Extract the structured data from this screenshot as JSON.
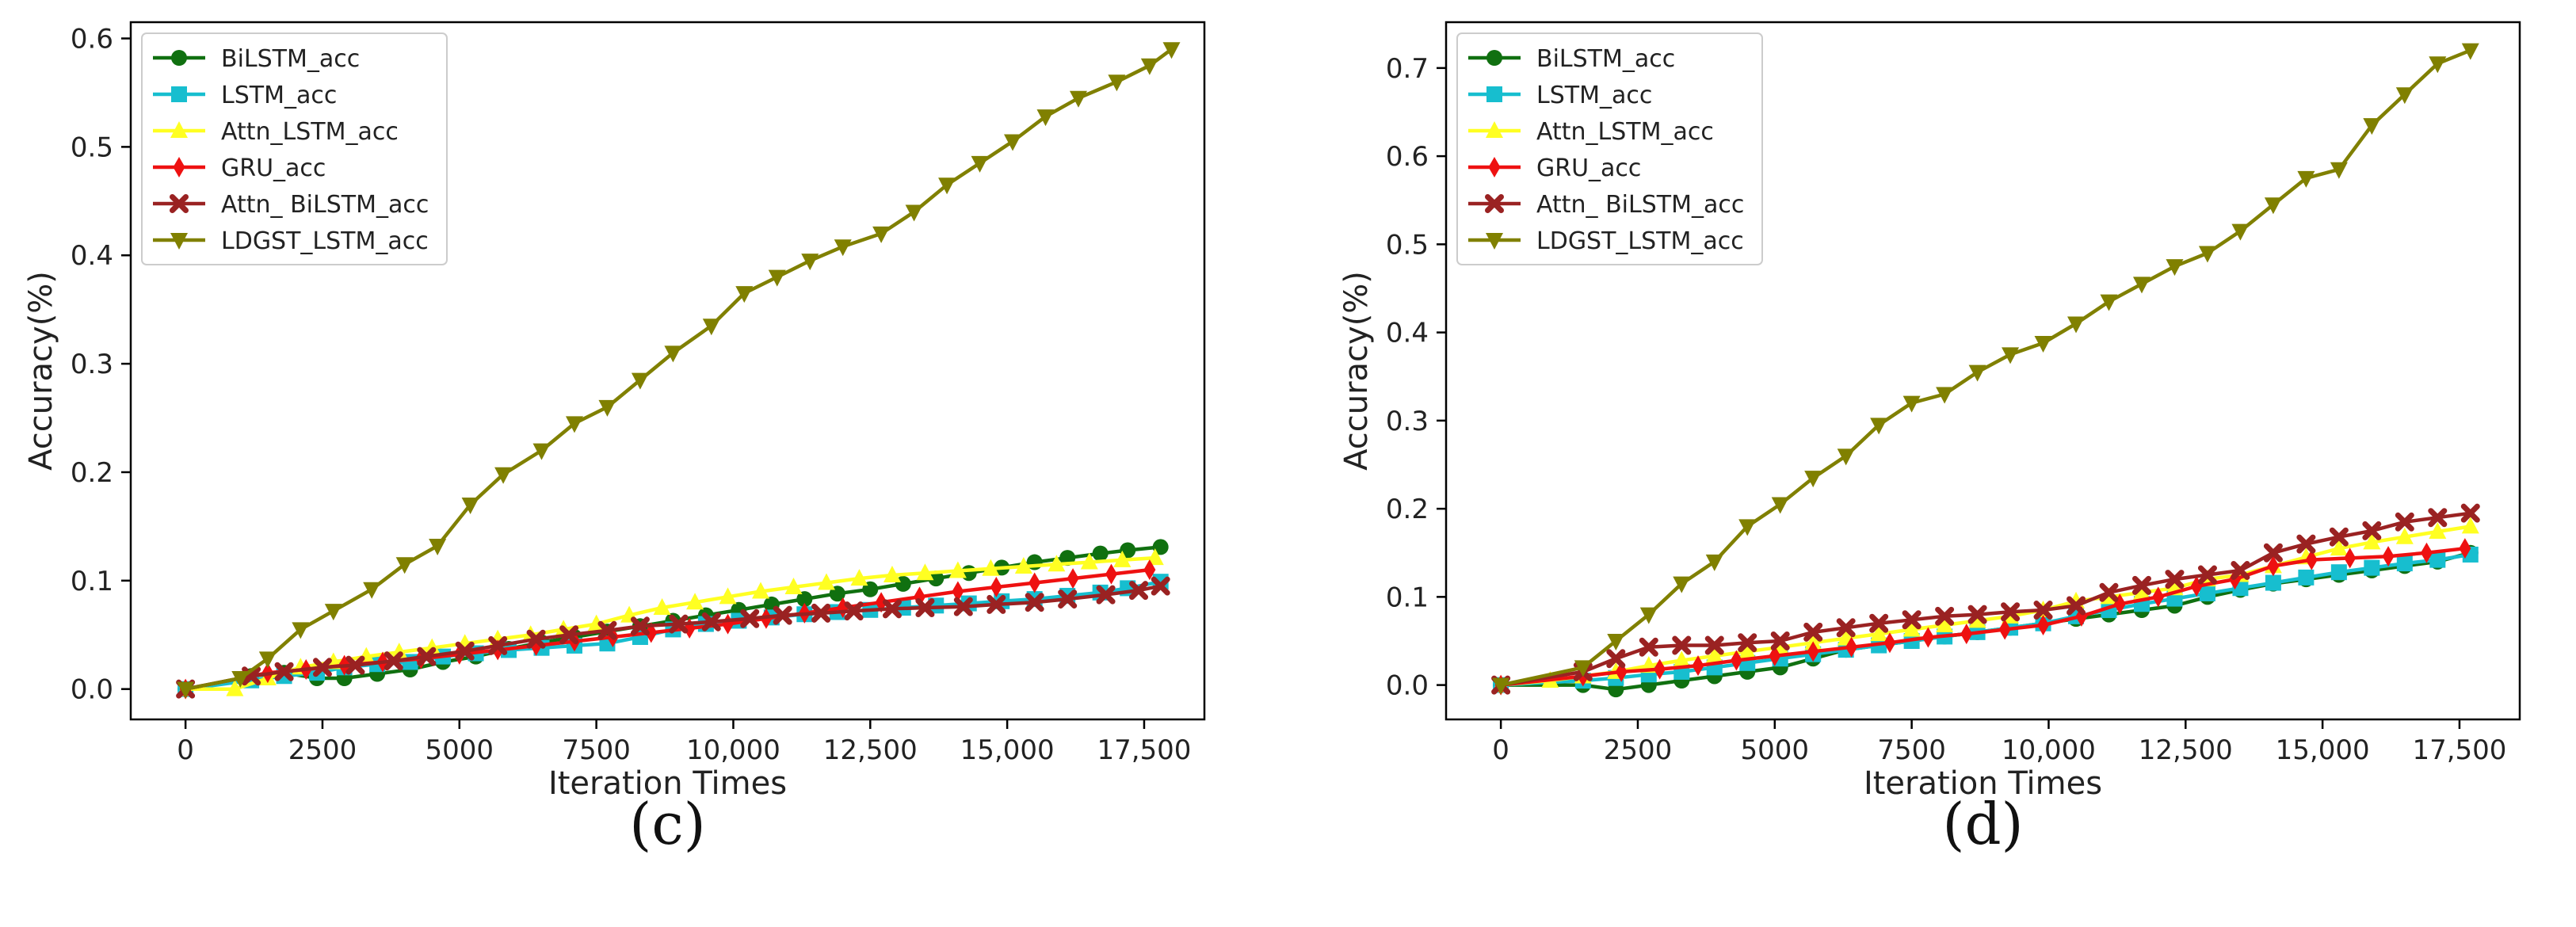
{
  "colors": {
    "BiLSTM_acc": "#107010",
    "LSTM_acc": "#17becf",
    "Attn_LSTM_acc": "#ffff22",
    "GRU_acc": "#ee1111",
    "Attn_ BiLSTM_acc": "#9a2222",
    "LDGST_LSTM_acc": "#808000"
  },
  "chart_data": [
    {
      "type": "line",
      "panel_label": "(c)",
      "xlabel": "Iteration Times",
      "ylabel": "Accuracy(%)",
      "xlim": [
        -1000,
        18600
      ],
      "ylim": [
        -0.028,
        0.615
      ],
      "xticks": [
        0,
        2500,
        5000,
        7500,
        10000,
        12500,
        15000,
        17500
      ],
      "xtick_labels": [
        "0",
        "2500",
        "5000",
        "7500",
        "10,000",
        "12,500",
        "15,000",
        "17,500"
      ],
      "yticks": [
        0.0,
        0.1,
        0.2,
        0.3,
        0.4,
        0.5,
        0.6
      ],
      "ytick_labels": [
        "0.0",
        "0.1",
        "0.2",
        "0.3",
        "0.4",
        "0.5",
        "0.6"
      ],
      "legend": "upper-left",
      "series": [
        {
          "name": "BiLSTM_acc",
          "marker": "circle",
          "x": [
            0,
            1200,
            1800,
            2400,
            2900,
            3500,
            4100,
            4700,
            5300,
            5900,
            6500,
            7100,
            7700,
            8300,
            8900,
            9500,
            10100,
            10700,
            11300,
            11900,
            12500,
            13100,
            13700,
            14300,
            14900,
            15500,
            16100,
            16700,
            17200,
            17800
          ],
          "y": [
            0.0,
            0.012,
            0.015,
            0.01,
            0.01,
            0.014,
            0.018,
            0.025,
            0.03,
            0.037,
            0.043,
            0.048,
            0.053,
            0.058,
            0.063,
            0.068,
            0.073,
            0.078,
            0.083,
            0.088,
            0.092,
            0.097,
            0.102,
            0.107,
            0.112,
            0.117,
            0.121,
            0.125,
            0.128,
            0.131
          ]
        },
        {
          "name": "LSTM_acc",
          "marker": "square",
          "x": [
            0,
            1200,
            1800,
            2400,
            2900,
            3500,
            4100,
            4700,
            5300,
            5900,
            6500,
            7100,
            7700,
            8300,
            8900,
            9500,
            10100,
            10700,
            11300,
            11900,
            12500,
            13100,
            13700,
            14300,
            14900,
            15500,
            16100,
            16700,
            17200,
            17800
          ],
          "y": [
            0.0,
            0.008,
            0.012,
            0.015,
            0.02,
            0.023,
            0.025,
            0.03,
            0.033,
            0.036,
            0.038,
            0.04,
            0.042,
            0.048,
            0.055,
            0.06,
            0.063,
            0.066,
            0.069,
            0.071,
            0.073,
            0.075,
            0.077,
            0.079,
            0.081,
            0.083,
            0.086,
            0.089,
            0.093,
            0.099
          ]
        },
        {
          "name": "Attn_LSTM_acc",
          "marker": "triangle-up",
          "x": [
            0,
            900,
            1500,
            2100,
            2700,
            3300,
            3900,
            4500,
            5100,
            5700,
            6300,
            6900,
            7500,
            8100,
            8700,
            9300,
            9900,
            10500,
            11100,
            11700,
            12300,
            12900,
            13500,
            14100,
            14700,
            15300,
            15900,
            16500,
            17100,
            17700
          ],
          "y": [
            0.0,
            0.0,
            0.01,
            0.02,
            0.025,
            0.03,
            0.034,
            0.038,
            0.042,
            0.046,
            0.05,
            0.055,
            0.06,
            0.068,
            0.075,
            0.08,
            0.085,
            0.09,
            0.094,
            0.098,
            0.102,
            0.105,
            0.107,
            0.109,
            0.111,
            0.113,
            0.115,
            0.117,
            0.119,
            0.121
          ]
        },
        {
          "name": "GRU_acc",
          "marker": "diamond",
          "x": [
            0,
            1500,
            2200,
            2900,
            3600,
            4300,
            5000,
            5700,
            6400,
            7100,
            7800,
            8500,
            9200,
            9900,
            10600,
            11300,
            12000,
            12700,
            13400,
            14100,
            14800,
            15500,
            16200,
            16900,
            17600
          ],
          "y": [
            0.0,
            0.015,
            0.018,
            0.022,
            0.025,
            0.028,
            0.032,
            0.036,
            0.04,
            0.044,
            0.048,
            0.052,
            0.056,
            0.06,
            0.065,
            0.07,
            0.075,
            0.08,
            0.085,
            0.09,
            0.094,
            0.098,
            0.102,
            0.106,
            0.11
          ]
        },
        {
          "name": "Attn_ BiLSTM_acc",
          "marker": "x",
          "x": [
            0,
            1200,
            1800,
            2500,
            3100,
            3800,
            4400,
            5100,
            5700,
            6400,
            7000,
            7700,
            8300,
            9000,
            9600,
            10300,
            10900,
            11600,
            12200,
            12900,
            13500,
            14200,
            14800,
            15500,
            16100,
            16800,
            17400,
            17800
          ],
          "y": [
            0.0,
            0.012,
            0.016,
            0.02,
            0.022,
            0.026,
            0.03,
            0.035,
            0.04,
            0.046,
            0.05,
            0.054,
            0.058,
            0.06,
            0.062,
            0.065,
            0.068,
            0.07,
            0.072,
            0.074,
            0.075,
            0.076,
            0.078,
            0.08,
            0.083,
            0.087,
            0.091,
            0.095
          ]
        },
        {
          "name": "LDGST_LSTM_acc",
          "marker": "triangle-down",
          "x": [
            0,
            1000,
            1500,
            2100,
            2700,
            3400,
            4000,
            4600,
            5200,
            5800,
            6500,
            7100,
            7700,
            8300,
            8900,
            9600,
            10200,
            10800,
            11400,
            12000,
            12700,
            13300,
            13900,
            14500,
            15100,
            15700,
            16300,
            17000,
            17600,
            18000
          ],
          "y": [
            0.0,
            0.01,
            0.028,
            0.055,
            0.072,
            0.092,
            0.115,
            0.132,
            0.17,
            0.198,
            0.22,
            0.245,
            0.26,
            0.285,
            0.31,
            0.335,
            0.365,
            0.38,
            0.395,
            0.408,
            0.42,
            0.44,
            0.465,
            0.485,
            0.505,
            0.528,
            0.545,
            0.56,
            0.575,
            0.59
          ]
        }
      ]
    },
    {
      "type": "line",
      "panel_label": "(d)",
      "xlabel": "Iteration Times",
      "ylabel": "Accuracy(%)",
      "xlim": [
        -1000,
        18600
      ],
      "ylim": [
        -0.039,
        0.752
      ],
      "xticks": [
        0,
        2500,
        5000,
        7500,
        10000,
        12500,
        15000,
        17500
      ],
      "xtick_labels": [
        "0",
        "2500",
        "5000",
        "7500",
        "10,000",
        "12,500",
        "15,000",
        "17,500"
      ],
      "yticks": [
        0.0,
        0.1,
        0.2,
        0.3,
        0.4,
        0.5,
        0.6,
        0.7
      ],
      "ytick_labels": [
        "0.0",
        "0.1",
        "0.2",
        "0.3",
        "0.4",
        "0.5",
        "0.6",
        "0.7"
      ],
      "legend": "upper-left",
      "series": [
        {
          "name": "BiLSTM_acc",
          "marker": "circle",
          "x": [
            0,
            1500,
            2100,
            2700,
            3300,
            3900,
            4500,
            5100,
            5700,
            6300,
            6900,
            7500,
            8100,
            8700,
            9300,
            9900,
            10500,
            11100,
            11700,
            12300,
            12900,
            13500,
            14100,
            14700,
            15300,
            15900,
            16500,
            17100,
            17700
          ],
          "y": [
            0.0,
            0.0,
            -0.005,
            0.0,
            0.005,
            0.01,
            0.015,
            0.02,
            0.03,
            0.04,
            0.045,
            0.05,
            0.055,
            0.06,
            0.065,
            0.07,
            0.075,
            0.08,
            0.085,
            0.09,
            0.1,
            0.108,
            0.115,
            0.12,
            0.125,
            0.13,
            0.135,
            0.14,
            0.15
          ]
        },
        {
          "name": "LSTM_acc",
          "marker": "square",
          "x": [
            0,
            1500,
            2100,
            2700,
            3300,
            3900,
            4500,
            5100,
            5700,
            6300,
            6900,
            7500,
            8100,
            8700,
            9300,
            9900,
            10500,
            11100,
            11700,
            12300,
            12900,
            13500,
            14100,
            14700,
            15300,
            15900,
            16500,
            17100,
            17700
          ],
          "y": [
            0.0,
            0.005,
            0.008,
            0.012,
            0.015,
            0.02,
            0.025,
            0.03,
            0.035,
            0.04,
            0.045,
            0.05,
            0.055,
            0.06,
            0.065,
            0.07,
            0.078,
            0.085,
            0.092,
            0.098,
            0.104,
            0.11,
            0.116,
            0.122,
            0.128,
            0.133,
            0.138,
            0.142,
            0.148
          ]
        },
        {
          "name": "Attn_LSTM_acc",
          "marker": "triangle-up",
          "x": [
            0,
            900,
            1500,
            2100,
            2700,
            3300,
            3900,
            4500,
            5100,
            5700,
            6300,
            6900,
            7500,
            8100,
            8700,
            9300,
            9900,
            10500,
            11100,
            11700,
            12300,
            12900,
            13500,
            14100,
            14700,
            15300,
            15900,
            16500,
            17100,
            17700
          ],
          "y": [
            0.0,
            0.005,
            0.01,
            0.015,
            0.022,
            0.028,
            0.033,
            0.038,
            0.043,
            0.048,
            0.053,
            0.058,
            0.063,
            0.068,
            0.073,
            0.078,
            0.085,
            0.095,
            0.1,
            0.105,
            0.11,
            0.12,
            0.125,
            0.135,
            0.145,
            0.155,
            0.162,
            0.168,
            0.174,
            0.18
          ]
        },
        {
          "name": "GRU_acc",
          "marker": "diamond",
          "x": [
            0,
            1500,
            2200,
            2900,
            3600,
            4300,
            5000,
            5700,
            6400,
            7100,
            7800,
            8500,
            9200,
            9900,
            10600,
            11300,
            12000,
            12700,
            13400,
            14100,
            14800,
            15500,
            16200,
            16900,
            17600
          ],
          "y": [
            0.0,
            0.01,
            0.015,
            0.018,
            0.022,
            0.028,
            0.033,
            0.038,
            0.043,
            0.048,
            0.054,
            0.058,
            0.063,
            0.068,
            0.078,
            0.092,
            0.1,
            0.112,
            0.12,
            0.135,
            0.142,
            0.144,
            0.146,
            0.15,
            0.155
          ]
        },
        {
          "name": "Attn_ BiLSTM_acc",
          "marker": "x",
          "x": [
            0,
            1500,
            2100,
            2700,
            3300,
            3900,
            4500,
            5100,
            5700,
            6300,
            6900,
            7500,
            8100,
            8700,
            9300,
            9900,
            10500,
            11100,
            11700,
            12300,
            12900,
            13500,
            14100,
            14700,
            15300,
            15900,
            16500,
            17100,
            17700
          ],
          "y": [
            0.0,
            0.015,
            0.03,
            0.043,
            0.045,
            0.045,
            0.048,
            0.05,
            0.06,
            0.065,
            0.07,
            0.074,
            0.078,
            0.08,
            0.083,
            0.085,
            0.09,
            0.105,
            0.113,
            0.12,
            0.125,
            0.13,
            0.15,
            0.16,
            0.168,
            0.175,
            0.185,
            0.19,
            0.195
          ]
        },
        {
          "name": "LDGST_LSTM_acc",
          "marker": "triangle-down",
          "x": [
            0,
            1500,
            2100,
            2700,
            3300,
            3900,
            4500,
            5100,
            5700,
            6300,
            6900,
            7500,
            8100,
            8700,
            9300,
            9900,
            10500,
            11100,
            11700,
            12300,
            12900,
            13500,
            14100,
            14700,
            15300,
            15900,
            16500,
            17100,
            17700
          ],
          "y": [
            0.0,
            0.02,
            0.05,
            0.08,
            0.115,
            0.14,
            0.18,
            0.205,
            0.235,
            0.26,
            0.295,
            0.32,
            0.33,
            0.355,
            0.375,
            0.388,
            0.41,
            0.435,
            0.455,
            0.475,
            0.49,
            0.515,
            0.545,
            0.575,
            0.585,
            0.635,
            0.67,
            0.705,
            0.72
          ]
        }
      ]
    }
  ]
}
